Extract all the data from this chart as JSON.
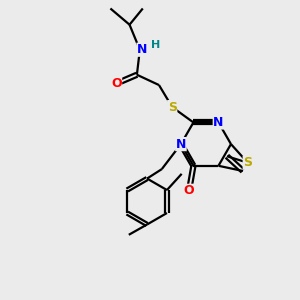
{
  "background_color": "#ebebeb",
  "atom_colors": {
    "C": "#000000",
    "N": "#0000ff",
    "O": "#ff0000",
    "S": "#bbaa00",
    "H": "#008888"
  },
  "figsize": [
    3.0,
    3.0
  ],
  "dpi": 100,
  "lw": 1.6,
  "fontsize": 9
}
